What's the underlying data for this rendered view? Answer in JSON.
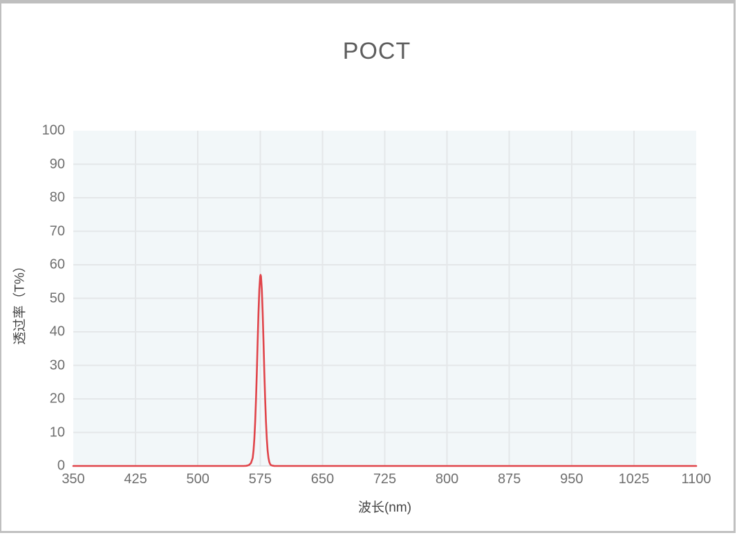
{
  "window": {
    "border_color": "#bfbfbf",
    "background_color": "#ffffff"
  },
  "chart_data": {
    "type": "line",
    "title": "POCT",
    "xlabel": "波长(nm)",
    "ylabel": "透过率（T%）",
    "xlim": [
      350,
      1100
    ],
    "ylim": [
      0,
      100
    ],
    "x_ticks": [
      350,
      425,
      500,
      575,
      650,
      725,
      800,
      875,
      950,
      1025,
      1100
    ],
    "y_ticks": [
      0,
      10,
      20,
      30,
      40,
      50,
      60,
      70,
      80,
      90,
      100
    ],
    "grid": true,
    "legend": "none",
    "colors": {
      "line": "#e04349",
      "plot_background": "#f2f7f9",
      "gridline": "#e4e7e9",
      "tick_text": "#6e6e6e",
      "axis_title_text": "#454545",
      "title_text": "#5d5d5d"
    },
    "peak": {
      "center_nm": 575.5,
      "max_transmittance_pct": 57,
      "fwhm_nm": 9
    },
    "series": [
      {
        "name": "透过率",
        "color": "#e04349",
        "points": [
          [
            350,
            0
          ],
          [
            375,
            0
          ],
          [
            400,
            0
          ],
          [
            425,
            0
          ],
          [
            450,
            0
          ],
          [
            475,
            0
          ],
          [
            500,
            0
          ],
          [
            525,
            0
          ],
          [
            545,
            0
          ],
          [
            555,
            0
          ],
          [
            558,
            0.05
          ],
          [
            560,
            0.15
          ],
          [
            562,
            0.35
          ],
          [
            564,
            0.9
          ],
          [
            566,
            2.4
          ],
          [
            567,
            4.6
          ],
          [
            568,
            8.1
          ],
          [
            569,
            13.2
          ],
          [
            570,
            20
          ],
          [
            571,
            28
          ],
          [
            572,
            37.3
          ],
          [
            573,
            45.9
          ],
          [
            574,
            52.7
          ],
          [
            575,
            56.5
          ],
          [
            575.5,
            57
          ],
          [
            576,
            56.5
          ],
          [
            577,
            52.7
          ],
          [
            578,
            45.9
          ],
          [
            579,
            37.3
          ],
          [
            580,
            28
          ],
          [
            581,
            20
          ],
          [
            582,
            13.2
          ],
          [
            583,
            8.1
          ],
          [
            584,
            4.6
          ],
          [
            585,
            2.4
          ],
          [
            586,
            1.2
          ],
          [
            587,
            0.55
          ],
          [
            588,
            0.25
          ],
          [
            590,
            0.08
          ],
          [
            592,
            0.02
          ],
          [
            595,
            0
          ],
          [
            600,
            0
          ],
          [
            620,
            0
          ],
          [
            650,
            0
          ],
          [
            675,
            0
          ],
          [
            700,
            0
          ],
          [
            725,
            0
          ],
          [
            750,
            0
          ],
          [
            775,
            0
          ],
          [
            800,
            0
          ],
          [
            825,
            0
          ],
          [
            850,
            0
          ],
          [
            875,
            0
          ],
          [
            900,
            0
          ],
          [
            925,
            0
          ],
          [
            950,
            0
          ],
          [
            975,
            0
          ],
          [
            1000,
            0
          ],
          [
            1025,
            0
          ],
          [
            1050,
            0
          ],
          [
            1075,
            0
          ],
          [
            1100,
            0
          ]
        ]
      }
    ]
  }
}
